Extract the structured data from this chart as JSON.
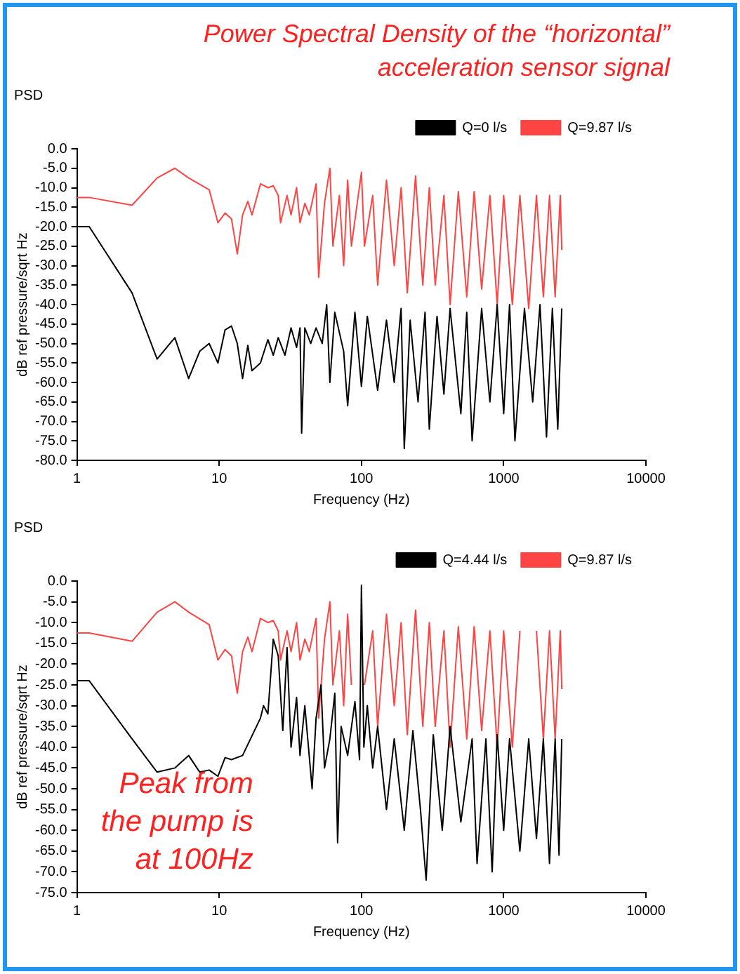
{
  "chart_data": [
    {
      "type": "line",
      "title": "Power Spectral Density of the “horizontal” acceleration sensor signal",
      "subtitle": "PSD",
      "xlabel": "Frequency (Hz)",
      "ylabel": "dB ref pressure/sqrt Hz",
      "log": "x",
      "xlim": [
        1,
        10000
      ],
      "xticks": [
        1,
        10,
        100,
        1000,
        10000
      ],
      "ylim": [
        -80,
        0
      ],
      "yticks": [
        {
          "value": 0,
          "label": "0.0"
        },
        {
          "value": -5,
          "label": "-5.0"
        },
        {
          "value": -10,
          "label": "-10.0"
        },
        {
          "value": -15,
          "label": "-15.0"
        },
        {
          "value": -20,
          "label": "-20.0"
        },
        {
          "value": -25,
          "label": "-25.0"
        },
        {
          "value": -30,
          "label": "-30.0"
        },
        {
          "value": -35,
          "label": "-35.0"
        },
        {
          "value": -40,
          "label": "-40.0"
        },
        {
          "value": -45,
          "label": "-45.0"
        },
        {
          "value": -50,
          "label": "-50.0"
        },
        {
          "value": -55,
          "label": "-55.0"
        },
        {
          "value": -60,
          "label": "-60.0"
        },
        {
          "value": -65,
          "label": "-65.0"
        },
        {
          "value": -70,
          "label": "-70.0"
        },
        {
          "value": -75,
          "label": "-75.0"
        },
        {
          "value": -80,
          "label": "-80.0"
        }
      ],
      "grid": false,
      "legend": "top right",
      "marker": "none",
      "line_style": "solid",
      "series": [
        {
          "name": "Q=0 l/s",
          "color": "#000000",
          "x": [
            1,
            1.22,
            2.44,
            3.66,
            4.88,
            6.1,
            7.3,
            8.5,
            9.8,
            11,
            12.2,
            13.4,
            14.6,
            15.9,
            17,
            19.5,
            22,
            24,
            26,
            29,
            32,
            35,
            37,
            38,
            40,
            44,
            48,
            53,
            57,
            60,
            65,
            75,
            80,
            90,
            100,
            110,
            130,
            150,
            170,
            190,
            200,
            220,
            250,
            280,
            300,
            340,
            380,
            420,
            500,
            550,
            600,
            700,
            800,
            900,
            1000,
            1100,
            1200,
            1400,
            1600,
            1800,
            2000,
            2200,
            2400,
            2560
          ],
          "values": [
            -20,
            -20,
            -37,
            -54,
            -48.5,
            -59,
            -52,
            -50,
            -55,
            -46.5,
            -45.5,
            -50,
            -59,
            -50.5,
            -57,
            -55,
            -49,
            -53,
            -48.5,
            -53,
            -46,
            -51,
            -46,
            -73,
            -46,
            -50,
            -46,
            -50,
            -40,
            -60,
            -42,
            -52,
            -66,
            -42,
            -61,
            -43,
            -62,
            -44,
            -60,
            -41,
            -77,
            -44,
            -65,
            -42,
            -72,
            -43,
            -63,
            -41,
            -68,
            -42,
            -75,
            -41,
            -65,
            -40,
            -68,
            -40,
            -75,
            -41,
            -65,
            -40,
            -74,
            -41,
            -72,
            -41
          ]
        },
        {
          "name": "Q=9.87 l/s",
          "color": "#ff4444",
          "x": [
            1,
            1.22,
            2.44,
            3.66,
            4.88,
            6.1,
            8.5,
            9.8,
            11,
            12.2,
            13.4,
            14.6,
            15.9,
            17,
            19.5,
            22,
            24,
            26,
            27,
            30,
            32,
            35,
            37,
            40,
            43,
            48,
            50,
            55,
            60,
            63,
            70,
            75,
            80,
            85,
            100,
            105,
            120,
            130,
            150,
            170,
            190,
            210,
            240,
            270,
            300,
            330,
            380,
            420,
            480,
            550,
            620,
            700,
            800,
            900,
            1000,
            1150,
            1300,
            1500,
            1700,
            1900,
            2100,
            2300,
            2500,
            2560
          ],
          "values": [
            -12.5,
            -12.5,
            -14.5,
            -7.5,
            -5,
            -7.5,
            -10.5,
            -19,
            -16.5,
            -18,
            -27,
            -17,
            -13.5,
            -17,
            -9,
            -10,
            -9.5,
            -12,
            -19,
            -12,
            -17,
            -10,
            -19,
            -14,
            -17,
            -9,
            -33,
            -14,
            -5,
            -25,
            -12,
            -30,
            -8,
            -25,
            -6,
            -25,
            -12,
            -35,
            -8,
            -30,
            -10,
            -37,
            -7,
            -35,
            -10,
            -35,
            -12,
            -40,
            -11,
            -38,
            -11,
            -36,
            -12,
            -40,
            -12,
            -40,
            -12,
            -41,
            -12,
            -38,
            -12,
            -38,
            -12,
            -26
          ]
        }
      ]
    },
    {
      "type": "line",
      "title": "PSD",
      "xlabel": "Frequency (Hz)",
      "ylabel": "dB ref pressure/sqrt Hz",
      "log": "x",
      "xlim": [
        1,
        10000
      ],
      "xticks": [
        1,
        10,
        100,
        1000,
        10000
      ],
      "ylim": [
        -75,
        0
      ],
      "yticks": [
        {
          "value": 0,
          "label": "0.0"
        },
        {
          "value": -5,
          "label": "-5.0"
        },
        {
          "value": -10,
          "label": "-10.0"
        },
        {
          "value": -15,
          "label": "-15.0"
        },
        {
          "value": -20,
          "label": "-20.0"
        },
        {
          "value": -25,
          "label": "-25.0"
        },
        {
          "value": -30,
          "label": "-30.0"
        },
        {
          "value": -35,
          "label": "-35.0"
        },
        {
          "value": -40,
          "label": "-40.0"
        },
        {
          "value": -45,
          "label": "-45.0"
        },
        {
          "value": -50,
          "label": "-50.0"
        },
        {
          "value": -55,
          "label": "-55.0"
        },
        {
          "value": -60,
          "label": "-60.0"
        },
        {
          "value": -65,
          "label": "-65.0"
        },
        {
          "value": -70,
          "label": "-70.0"
        },
        {
          "value": -75,
          "label": "-75.0"
        }
      ],
      "grid": false,
      "legend": "top right",
      "marker": "none",
      "line_style": "solid",
      "annotations": [
        "Peak from the pump is at 100Hz"
      ],
      "series": [
        {
          "name": "Q=4.44 l/s",
          "color": "#000000",
          "x": [
            1,
            1.22,
            2.44,
            3.66,
            4.88,
            6.1,
            7.3,
            8.5,
            9.8,
            11,
            12.2,
            14.6,
            19.5,
            20.5,
            22,
            24,
            26,
            28,
            30,
            32,
            35,
            37,
            40,
            45,
            48,
            52,
            55,
            60,
            65,
            68,
            72,
            80,
            90,
            97,
            100,
            104,
            110,
            120,
            130,
            150,
            170,
            200,
            230,
            260,
            285,
            320,
            370,
            420,
            500,
            600,
            650,
            750,
            830,
            900,
            1000,
            1100,
            1300,
            1500,
            1700,
            1900,
            2100,
            2300,
            2450,
            2560
          ],
          "values": [
            -24,
            -24,
            -38,
            -46,
            -45,
            -42,
            -46,
            -45.5,
            -47,
            -42.5,
            -43,
            -42,
            -33,
            -30,
            -32,
            -14,
            -18,
            -36,
            -16,
            -40,
            -28,
            -42,
            -30,
            -50,
            -33,
            -25,
            -45,
            -38,
            -27,
            -63,
            -35,
            -42,
            -29,
            -43,
            -1,
            -40,
            -30,
            -45,
            -35,
            -55,
            -38,
            -60,
            -36,
            -55,
            -72,
            -37,
            -60,
            -35,
            -58,
            -38,
            -68,
            -38,
            -70,
            -37,
            -60,
            -38,
            -65,
            -38,
            -62,
            -38,
            -68,
            -38,
            -66,
            -38
          ]
        },
        {
          "name": "Q=9.87 l/s",
          "color": "#ff4444",
          "x": [
            1,
            1.22,
            2.44,
            3.66,
            4.88,
            6.1,
            8.5,
            9.8,
            11,
            12.2,
            13.4,
            14.6,
            15.9,
            17,
            19.5,
            22,
            24,
            26,
            27,
            30,
            32,
            35,
            37,
            40,
            43,
            48,
            50,
            55,
            60,
            63,
            70,
            75,
            80,
            85,
            100,
            105,
            120,
            130,
            150,
            170,
            190,
            210,
            240,
            270,
            300,
            330,
            380,
            420,
            480,
            550,
            620,
            700,
            800,
            900,
            1000,
            1150,
            1300,
            1500,
            1700,
            1900,
            2100,
            2300,
            2500,
            2560
          ],
          "values": [
            -12.5,
            -12.5,
            -14.5,
            -7.5,
            -5,
            -7.5,
            -10.5,
            -19,
            -16.5,
            -18,
            -27,
            -17,
            -13.5,
            -17,
            -9,
            -10,
            -9.5,
            -12,
            -19,
            -12,
            -17,
            -10,
            -19,
            -14,
            -17,
            -9,
            -33,
            -14,
            -5,
            -25,
            -12,
            -30,
            -8,
            -25,
            null,
            -25,
            -12,
            -35,
            -8,
            -30,
            -10,
            -37,
            -7,
            -35,
            -10,
            -35,
            -12,
            -40,
            -11,
            -38,
            -11,
            -36,
            -12,
            -40,
            -12,
            -40,
            -12,
            null,
            -12,
            -38,
            -12,
            -38,
            -12,
            -26
          ]
        }
      ]
    }
  ]
}
